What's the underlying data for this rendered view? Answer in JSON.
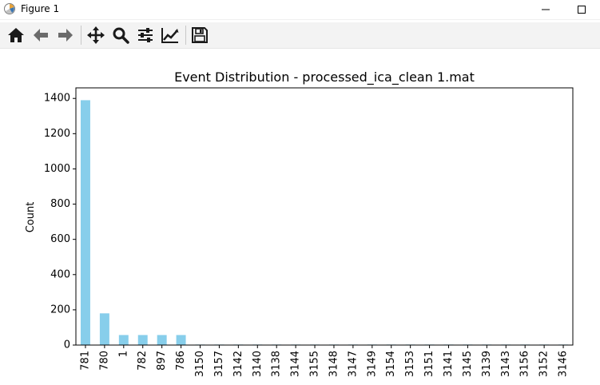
{
  "window": {
    "title": "Figure 1",
    "icon": "matplotlib-icon",
    "minimize_icon": "minimize-icon",
    "maximize_icon": "maximize-icon"
  },
  "toolbar": {
    "icons": [
      "home-icon",
      "back-arrow-icon",
      "forward-arrow-icon",
      "pan-icon",
      "zoom-icon",
      "configure-subplots-icon",
      "edit-axis-icon",
      "save-icon"
    ]
  },
  "colors": {
    "bar": "#87ceeb",
    "axis": "#000000"
  },
  "chart_data": {
    "type": "bar",
    "title": "Event Distribution - processed_ica_clean 1.mat",
    "xlabel": "",
    "ylabel": "Count",
    "categories": [
      "781",
      "780",
      "1",
      "782",
      "897",
      "786",
      "3150",
      "3157",
      "3142",
      "3140",
      "3138",
      "3144",
      "3155",
      "3148",
      "3147",
      "3149",
      "3154",
      "3153",
      "3151",
      "3141",
      "3145",
      "3139",
      "3143",
      "3156",
      "3152",
      "3146"
    ],
    "values": [
      1390,
      180,
      57,
      57,
      57,
      57,
      3,
      3,
      3,
      3,
      3,
      3,
      3,
      3,
      3,
      3,
      3,
      3,
      3,
      3,
      3,
      3,
      3,
      3,
      3,
      3
    ],
    "ylim": [
      0,
      1460
    ],
    "yticks": [
      0,
      200,
      400,
      600,
      800,
      1000,
      1200,
      1400
    ],
    "grid": false,
    "legend": "none"
  }
}
